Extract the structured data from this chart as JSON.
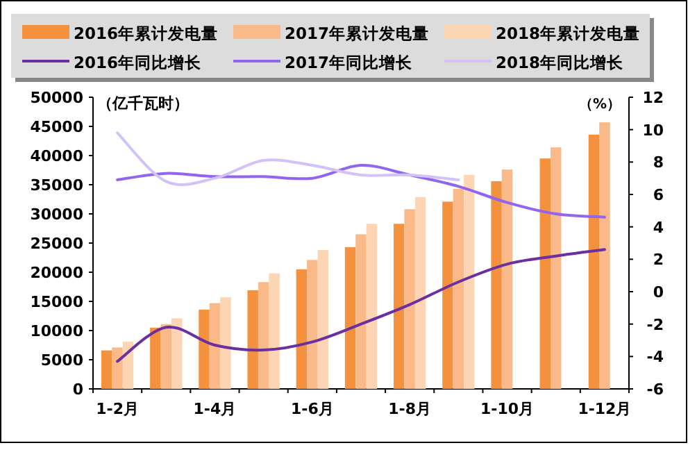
{
  "chart_data": {
    "type": "bar",
    "categories": [
      "1-2月",
      null,
      "1-4月",
      null,
      "1-6月",
      null,
      "1-8月",
      null,
      "1-10月",
      null,
      "1-12月"
    ],
    "ylabel": "（亿千瓦时）",
    "y2label": "（%）",
    "ylim": [
      0,
      50000
    ],
    "yticks": [
      0,
      5000,
      10000,
      15000,
      20000,
      25000,
      30000,
      35000,
      40000,
      45000,
      50000
    ],
    "y2lim": [
      -6,
      12
    ],
    "y2ticks": [
      -6,
      -4,
      -2,
      0,
      2,
      4,
      6,
      8,
      10,
      12
    ],
    "legend": "top",
    "grid": false,
    "marker": "none",
    "line_style": "solid",
    "series": [
      {
        "name": "2016年累计发电量",
        "color": "#f4913e",
        "values": [
          6600,
          10500,
          13600,
          16900,
          20500,
          24300,
          28300,
          32100,
          35600,
          39500,
          43600
        ]
      },
      {
        "name": "2017年累计发电量",
        "color": "#f9b988",
        "values": [
          7100,
          11100,
          14700,
          18300,
          22100,
          26500,
          30800,
          34300,
          37600,
          41400,
          45700
        ]
      },
      {
        "name": "2018年累计发电量",
        "color": "#fcd5b4",
        "values": [
          8100,
          12100,
          15700,
          19800,
          23800,
          28300,
          32900,
          36700,
          null,
          null,
          null
        ]
      },
      {
        "name": "2016年同比增长",
        "type": "line",
        "axis": "y2",
        "color": "#6a2fa0",
        "values": [
          -4.3,
          -2.2,
          -3.3,
          -3.6,
          -3.1,
          -2.0,
          -0.8,
          0.6,
          1.7,
          2.2,
          2.6
        ]
      },
      {
        "name": "2017年同比增长",
        "type": "line",
        "axis": "y2",
        "color": "#9265f0",
        "values": [
          6.9,
          7.3,
          7.1,
          7.1,
          7.0,
          7.8,
          7.2,
          6.5,
          5.5,
          4.8,
          4.6
        ]
      },
      {
        "name": "2018年同比增长",
        "type": "line",
        "axis": "y2",
        "color": "#d2c2f7",
        "values": [
          9.8,
          6.8,
          7.0,
          8.1,
          7.8,
          7.2,
          7.2,
          6.9,
          null,
          null,
          null
        ]
      }
    ]
  }
}
